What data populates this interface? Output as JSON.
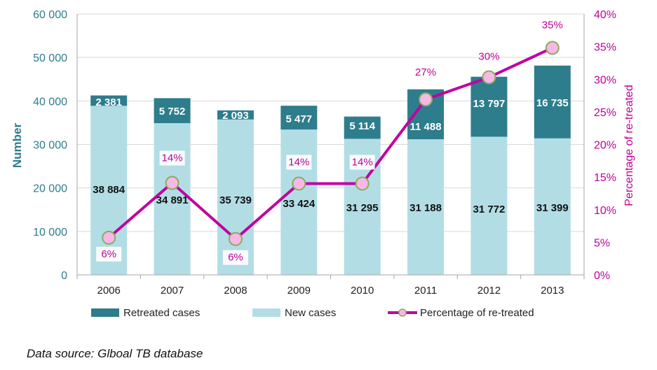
{
  "chart_data": {
    "type": "bar",
    "stacked": true,
    "categories": [
      "2006",
      "2007",
      "2008",
      "2009",
      "2010",
      "2011",
      "2012",
      "2013"
    ],
    "series": [
      {
        "name": "New cases",
        "type": "bar",
        "axis": "left",
        "color": "#b3dde5",
        "values": [
          38884,
          34891,
          35739,
          33424,
          31295,
          31188,
          31772,
          31399
        ],
        "labels": [
          "38 884",
          "34 891",
          "35 739",
          "33 424",
          "31 295",
          "31 188",
          "31 772",
          "31 399"
        ]
      },
      {
        "name": "Retreated cases",
        "type": "bar",
        "axis": "left",
        "color": "#2e7d8c",
        "values": [
          2381,
          5752,
          2093,
          5477,
          5114,
          11488,
          13797,
          16735
        ],
        "labels": [
          "2 381",
          "5 752",
          "2 093",
          "5 477",
          "5 114",
          "11 488",
          "13 797",
          "16 735"
        ]
      },
      {
        "name": "Percentage of re-treated",
        "type": "line",
        "axis": "right",
        "color": "#c000a0",
        "marker_color": "#f7b8e8",
        "marker_edge": "#8aad5a",
        "values": [
          0.057,
          0.141,
          0.055,
          0.14,
          0.14,
          0.269,
          0.303,
          0.348
        ],
        "labels": [
          "6%",
          "14%",
          "6%",
          "14%",
          "14%",
          "27%",
          "30%",
          "35%"
        ]
      }
    ],
    "ylabel": "Number",
    "ylim": [
      0,
      60000
    ],
    "yticks": [
      "0",
      "10 000",
      "20 000",
      "30 000",
      "40 000",
      "50 000",
      "60 000"
    ],
    "y2label": "Percentage of re-treated",
    "y2lim": [
      0,
      0.4
    ],
    "y2ticks": [
      "0%",
      "5%",
      "10%",
      "15%",
      "20%",
      "25%",
      "30%",
      "35%",
      "40%"
    ],
    "grid": true,
    "legend": "bottom",
    "legend_order": [
      "Retreated cases",
      "New cases",
      "Percentage of re-treated"
    ]
  },
  "source_note": "Data source: Glboal TB database"
}
